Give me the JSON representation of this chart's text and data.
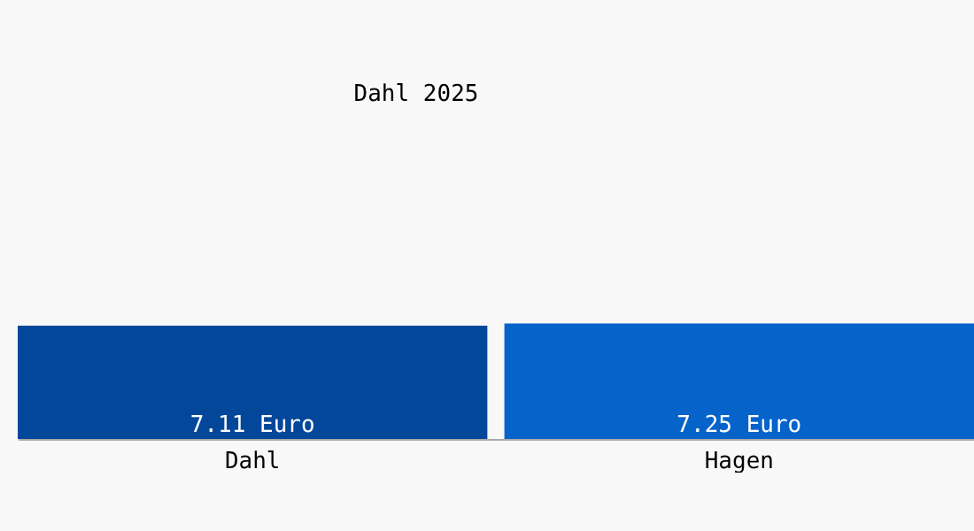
{
  "chart_data": {
    "type": "bar",
    "title": "Dahl 2025",
    "categories": [
      "Dahl",
      "Hagen"
    ],
    "values": [
      7.11,
      7.25
    ],
    "colors": [
      "#03479a",
      "#0563c9"
    ],
    "value_labels": [
      "7.11 Euro",
      "7.25 Euro"
    ],
    "tick_labels": "x"
  }
}
